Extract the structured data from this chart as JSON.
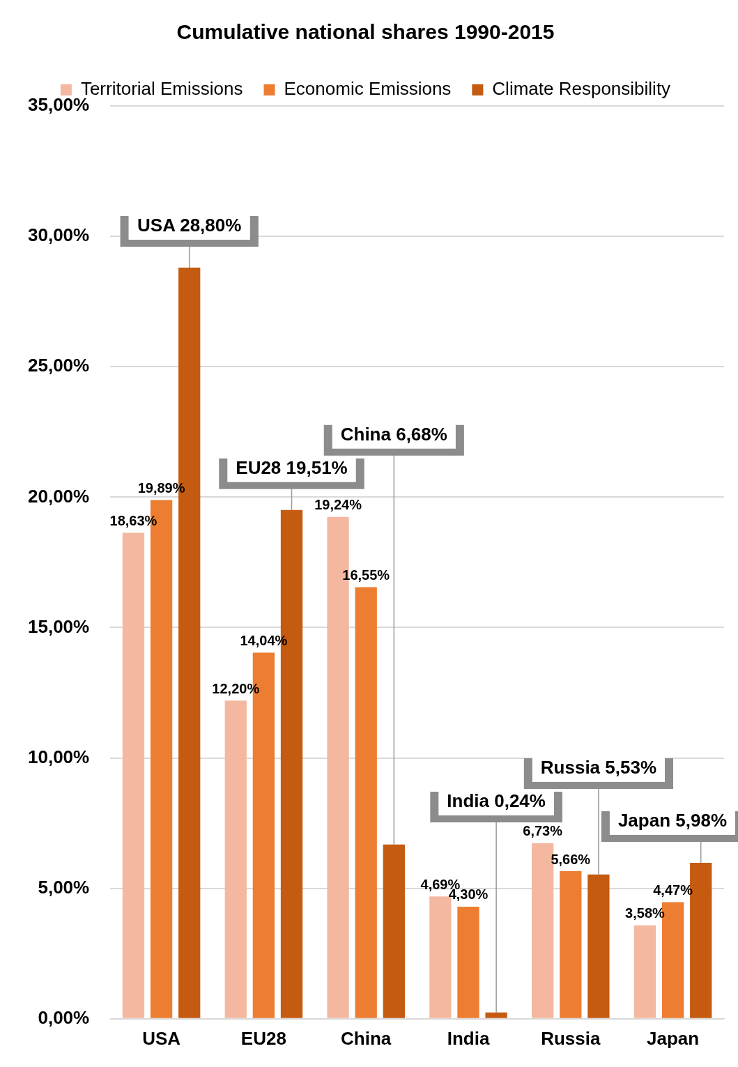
{
  "chart_data": {
    "type": "bar",
    "title": "Cumulative national shares 1990-2015",
    "categories": [
      "USA",
      "EU28",
      "China",
      "India",
      "Russia",
      "Japan"
    ],
    "series": [
      {
        "name": "Territorial Emissions",
        "color": "#f4b8a0",
        "values": [
          18.63,
          12.2,
          19.24,
          4.69,
          6.73,
          3.58
        ],
        "value_labels": [
          "18,63%",
          "12,20%",
          "19,24%",
          "4,69%",
          "6,73%",
          "3,58%"
        ]
      },
      {
        "name": "Economic Emissions",
        "color": "#ed7d31",
        "values": [
          19.89,
          14.04,
          16.55,
          4.3,
          5.66,
          4.47
        ],
        "value_labels": [
          "19,89%",
          "14,04%",
          "16,55%",
          "4,30%",
          "5,66%",
          "4,47%"
        ]
      },
      {
        "name": "Climate Responsibility",
        "color": "#c55a11",
        "values": [
          28.8,
          19.51,
          6.68,
          0.24,
          5.53,
          5.98
        ],
        "value_labels": [
          "USA 28,80%",
          "EU28 19,51%",
          "China 6,68%",
          "India 0,24%",
          "Russia 5,53%",
          "Japan 5,98%"
        ]
      }
    ],
    "ylim": [
      0,
      35
    ],
    "yticks": [
      {
        "value": 0,
        "label": "0,00%"
      },
      {
        "value": 5,
        "label": "5,00%"
      },
      {
        "value": 10,
        "label": "10,00%"
      },
      {
        "value": 15,
        "label": "15,00%"
      },
      {
        "value": 20,
        "label": "20,00%"
      },
      {
        "value": 25,
        "label": "25,00%"
      },
      {
        "value": 30,
        "label": "30,00%"
      },
      {
        "value": 35,
        "label": "35,00%"
      }
    ],
    "grid": "y",
    "legend": "top"
  }
}
